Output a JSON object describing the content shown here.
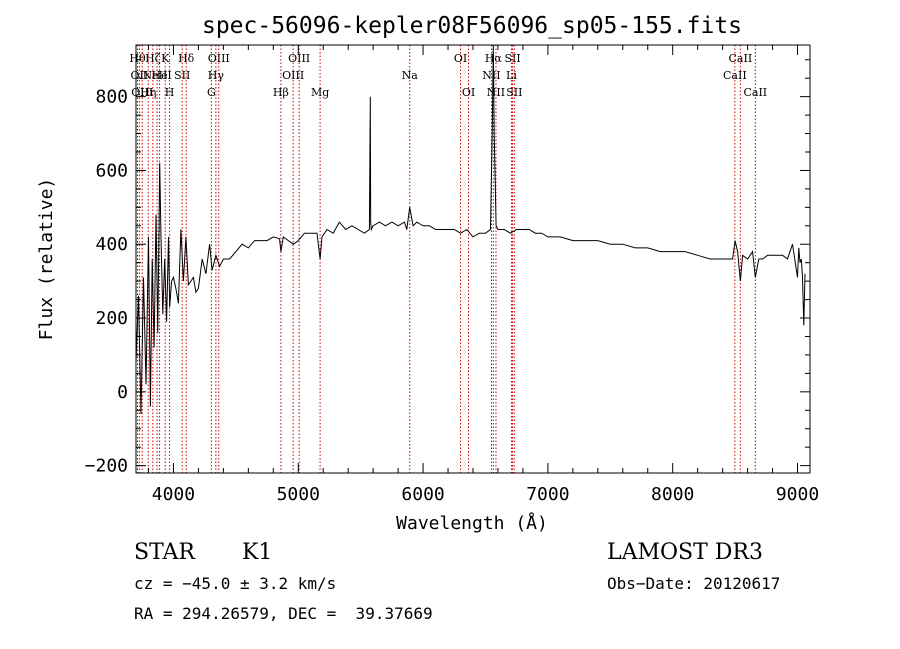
{
  "chart_data": {
    "type": "line",
    "title": "spec-56096-kepler08F56096_sp05-155.fits",
    "xlabel": "Wavelength (Å)",
    "ylabel": "Flux (relative)",
    "xlim": [
      3700,
      9100
    ],
    "ylim": [
      -220,
      940
    ],
    "x_ticks": [
      4000,
      5000,
      6000,
      7000,
      8000,
      9000
    ],
    "x_tick_labels": [
      "4000",
      "5000",
      "6000",
      "7000",
      "8000",
      "9000"
    ],
    "y_ticks": [
      -200,
      0,
      200,
      400,
      600,
      800
    ],
    "y_tick_labels": [
      "−200",
      "0",
      "200",
      "400",
      "600",
      "800"
    ],
    "grid": false,
    "line_color": "#000000",
    "marker_color": "#cc0000",
    "series": [
      {
        "name": "flux",
        "x": [
          3700,
          3720,
          3740,
          3760,
          3780,
          3800,
          3815,
          3830,
          3845,
          3860,
          3875,
          3890,
          3900,
          3915,
          3930,
          3945,
          3960,
          3970,
          3985,
          4000,
          4020,
          4040,
          4060,
          4080,
          4100,
          4120,
          4140,
          4160,
          4180,
          4200,
          4230,
          4260,
          4290,
          4310,
          4340,
          4370,
          4400,
          4450,
          4500,
          4550,
          4600,
          4650,
          4700,
          4750,
          4800,
          4850,
          4861,
          4880,
          4920,
          4960,
          5000,
          5050,
          5100,
          5150,
          5175,
          5190,
          5230,
          5280,
          5330,
          5380,
          5430,
          5480,
          5530,
          5570,
          5577,
          5580,
          5585,
          5600,
          5650,
          5700,
          5750,
          5800,
          5850,
          5870,
          5893,
          5920,
          5950,
          6000,
          6050,
          6100,
          6150,
          6200,
          6250,
          6300,
          6350,
          6400,
          6450,
          6500,
          6540,
          6555,
          6563,
          6570,
          6585,
          6600,
          6650,
          6700,
          6750,
          6800,
          6850,
          6900,
          6950,
          7000,
          7100,
          7200,
          7300,
          7400,
          7500,
          7600,
          7700,
          7800,
          7900,
          8000,
          8100,
          8200,
          8300,
          8400,
          8480,
          8500,
          8520,
          8542,
          8560,
          8600,
          8640,
          8662,
          8690,
          8720,
          8760,
          8800,
          8840,
          8880,
          8920,
          8960,
          9000,
          9010,
          9020,
          9030,
          9040,
          9050,
          9060
        ],
        "values": [
          80,
          260,
          -60,
          310,
          20,
          420,
          -40,
          360,
          120,
          480,
          160,
          620,
          420,
          210,
          360,
          190,
          420,
          230,
          300,
          310,
          280,
          240,
          440,
          300,
          420,
          290,
          300,
          310,
          270,
          280,
          360,
          320,
          400,
          330,
          370,
          340,
          360,
          360,
          380,
          400,
          390,
          410,
          410,
          410,
          420,
          415,
          380,
          420,
          410,
          400,
          410,
          430,
          430,
          430,
          360,
          420,
          440,
          430,
          460,
          440,
          450,
          440,
          430,
          440,
          800,
          460,
          440,
          450,
          460,
          450,
          460,
          450,
          460,
          440,
          500,
          450,
          460,
          450,
          450,
          440,
          440,
          440,
          440,
          430,
          440,
          420,
          430,
          430,
          440,
          720,
          960,
          700,
          450,
          440,
          440,
          430,
          440,
          440,
          440,
          430,
          430,
          420,
          420,
          410,
          410,
          410,
          400,
          400,
          390,
          390,
          380,
          380,
          380,
          370,
          360,
          360,
          360,
          410,
          380,
          300,
          370,
          360,
          380,
          310,
          360,
          360,
          370,
          370,
          370,
          370,
          360,
          400,
          310,
          390,
          350,
          360,
          310,
          180,
          320
        ]
      }
    ],
    "line_markers": [
      {
        "x": 3712,
        "label": "Hθ",
        "row": 1
      },
      {
        "x": 3727,
        "label": "OII",
        "row": 2
      },
      {
        "x": 3750,
        "label": "OIII",
        "row": 3
      },
      {
        "x": 3798,
        "label": "Hη",
        "row": 3
      },
      {
        "x": 3835,
        "label": "Hζ",
        "row": 1
      },
      {
        "x": 3869,
        "label": "NeIII",
        "row": 2
      },
      {
        "x": 3889,
        "label": "He",
        "row": 2
      },
      {
        "x": 3934,
        "label": "K",
        "row": 1
      },
      {
        "x": 3969,
        "label": "H",
        "row": 3
      },
      {
        "x": 4070,
        "label": "SII",
        "row": 2
      },
      {
        "x": 4102,
        "label": "Hδ",
        "row": 1
      },
      {
        "x": 4304,
        "label": "G",
        "row": 3
      },
      {
        "x": 4340,
        "label": "Hγ",
        "row": 2
      },
      {
        "x": 4363,
        "label": "OIII",
        "row": 1
      },
      {
        "x": 4861,
        "label": "Hβ",
        "row": 3
      },
      {
        "x": 4959,
        "label": "OIII",
        "row": 2
      },
      {
        "x": 5007,
        "label": "OIII",
        "row": 1
      },
      {
        "x": 5175,
        "label": "Mg",
        "row": 3
      },
      {
        "x": 5893,
        "label": "Na",
        "row": 2
      },
      {
        "x": 6300,
        "label": "OI",
        "row": 1
      },
      {
        "x": 6364,
        "label": "OI",
        "row": 3
      },
      {
        "x": 6548,
        "label": "NII",
        "row": 2
      },
      {
        "x": 6563,
        "label": "Hα",
        "row": 1
      },
      {
        "x": 6584,
        "label": "NII",
        "row": 3
      },
      {
        "x": 6708,
        "label": "Li",
        "row": 2
      },
      {
        "x": 6717,
        "label": "SII",
        "row": 1
      },
      {
        "x": 6731,
        "label": "SII",
        "row": 3
      },
      {
        "x": 8498,
        "label": "CaII",
        "row": 2
      },
      {
        "x": 8542,
        "label": "CaII",
        "row": 1
      },
      {
        "x": 8662,
        "label": "CaII",
        "row": 3
      }
    ]
  },
  "info": {
    "object_class": "STAR",
    "subclass": "K1",
    "survey": "LAMOST DR3",
    "redshift": "cz = −45.0 ± 3.2 km/s",
    "obs_date": "Obs−Date: 20120617",
    "coords": "RA = 294.26579, DEC =  39.37669"
  }
}
